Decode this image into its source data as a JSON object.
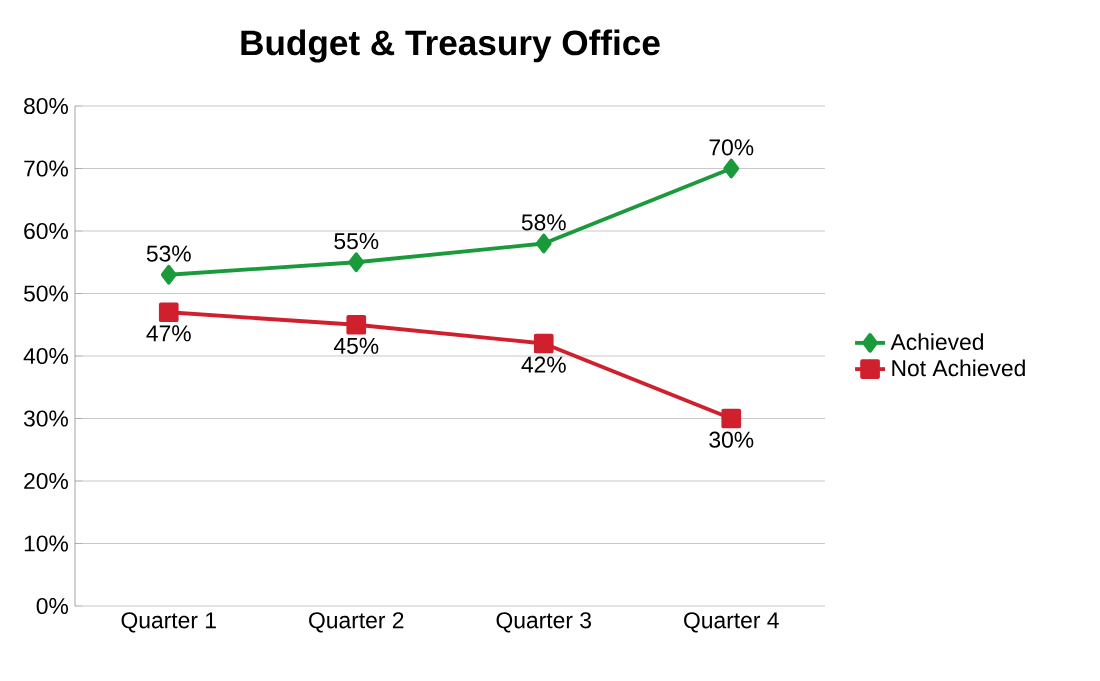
{
  "chart_data": {
    "type": "line",
    "title": "Budget & Treasury Office",
    "categories": [
      "Quarter 1",
      "Quarter 2",
      "Quarter 3",
      "Quarter 4"
    ],
    "series": [
      {
        "name": "Achieved",
        "color": "#1a9a3a",
        "marker": "diamond",
        "values": [
          53,
          55,
          58,
          70
        ],
        "value_labels": [
          "53%",
          "55%",
          "58%",
          "70%"
        ]
      },
      {
        "name": "Not Achieved",
        "color": "#d0202e",
        "marker": "square",
        "values": [
          47,
          45,
          42,
          30
        ],
        "value_labels": [
          "47%",
          "45%",
          "42%",
          "30%"
        ]
      }
    ],
    "ylim": [
      0,
      80
    ],
    "yticks": [
      {
        "value": 0,
        "label": "0%"
      },
      {
        "value": 10,
        "label": "10%"
      },
      {
        "value": 20,
        "label": "20%"
      },
      {
        "value": 30,
        "label": "30%"
      },
      {
        "value": 40,
        "label": "40%"
      },
      {
        "value": 50,
        "label": "50%"
      },
      {
        "value": 60,
        "label": "60%"
      },
      {
        "value": 70,
        "label": "70%"
      },
      {
        "value": 80,
        "label": "80%"
      }
    ],
    "grid": "y",
    "legend": "right",
    "line_style": "solid"
  }
}
